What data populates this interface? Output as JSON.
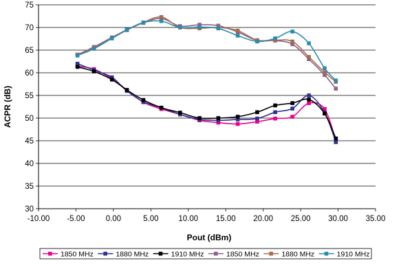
{
  "chart_data": {
    "type": "line",
    "title": "",
    "xlabel": "Pout (dBm)",
    "ylabel": "ACPR (dB)",
    "xlim": [
      -10,
      35
    ],
    "ylim": [
      30,
      75
    ],
    "x_ticks": [
      "-10.00",
      "-5.00",
      "0.00",
      "5.00",
      "10.00",
      "15.00",
      "20.00",
      "25.00",
      "30.00",
      "35.00"
    ],
    "y_ticks": [
      "30",
      "35",
      "40",
      "45",
      "50",
      "55",
      "60",
      "65",
      "70",
      "75"
    ],
    "grid": "horizontal",
    "legend_position": "bottom",
    "series": [
      {
        "name": "1850 MHz",
        "color": "#ec008c",
        "marker": "square",
        "x": [
          -4.8,
          -2.6,
          -0.2,
          1.8,
          4.0,
          6.4,
          8.9,
          11.5,
          14.0,
          16.6,
          19.2,
          21.6,
          23.9,
          26.1,
          28.2,
          29.7
        ],
        "y": [
          61.5,
          60.8,
          58.7,
          56.2,
          53.5,
          52.0,
          50.8,
          49.5,
          49.0,
          48.7,
          49.2,
          49.9,
          50.3,
          53.3,
          52.0,
          45.0
        ]
      },
      {
        "name": "1880 MHz",
        "color": "#2e3192",
        "marker": "square",
        "x": [
          -4.8,
          -2.6,
          -0.2,
          1.8,
          4.0,
          6.4,
          8.9,
          11.5,
          14.0,
          16.6,
          19.2,
          21.6,
          23.9,
          26.1,
          28.2,
          29.7
        ],
        "y": [
          62.0,
          60.6,
          59.0,
          56.0,
          53.6,
          52.3,
          50.8,
          49.7,
          49.5,
          49.7,
          49.9,
          51.3,
          52.1,
          55.0,
          51.2,
          44.7
        ]
      },
      {
        "name": "1910 MHz",
        "color": "#000000",
        "marker": "square",
        "x": [
          -4.8,
          -2.6,
          -0.2,
          1.8,
          4.0,
          6.4,
          8.9,
          11.5,
          14.0,
          16.6,
          19.2,
          21.6,
          23.9,
          26.1,
          28.2,
          29.7
        ],
        "y": [
          61.3,
          60.3,
          58.5,
          56.2,
          54.0,
          52.3,
          51.2,
          50.0,
          50.0,
          50.3,
          51.3,
          52.8,
          53.3,
          54.1,
          51.0,
          45.5
        ]
      },
      {
        "name": "1850 MHz",
        "color": "#8c6188",
        "marker": "square",
        "x": [
          -4.8,
          -2.6,
          -0.2,
          1.8,
          4.0,
          6.4,
          8.9,
          11.5,
          14.0,
          16.6,
          19.2,
          21.6,
          23.9,
          26.1,
          28.2,
          29.7
        ],
        "y": [
          64.0,
          65.7,
          67.8,
          69.5,
          71.0,
          72.0,
          70.3,
          70.6,
          70.4,
          69.0,
          67.1,
          67.1,
          66.3,
          63.0,
          59.5,
          56.5
        ]
      },
      {
        "name": "1880 MHz",
        "color": "#a76b4c",
        "marker": "square",
        "x": [
          -4.8,
          -2.6,
          -0.2,
          1.8,
          4.0,
          6.4,
          8.9,
          11.5,
          14.0,
          16.6,
          19.2,
          21.6,
          23.9,
          26.1,
          28.2,
          29.7
        ],
        "y": [
          64.0,
          65.5,
          67.6,
          69.4,
          71.1,
          72.3,
          70.0,
          69.8,
          70.0,
          69.3,
          67.2,
          67.2,
          66.9,
          63.5,
          60.1,
          58.0
        ]
      },
      {
        "name": "1910 MHz",
        "color": "#2a8bb0",
        "marker": "square",
        "x": [
          -4.8,
          -2.6,
          -0.2,
          1.8,
          4.0,
          6.4,
          8.9,
          11.5,
          14.0,
          16.6,
          19.2,
          21.6,
          23.9,
          26.1,
          28.2,
          29.7
        ],
        "y": [
          63.8,
          65.3,
          67.6,
          69.5,
          71.1,
          71.4,
          70.0,
          70.1,
          69.8,
          68.2,
          66.9,
          67.6,
          69.1,
          66.5,
          61.0,
          58.3
        ]
      }
    ]
  }
}
